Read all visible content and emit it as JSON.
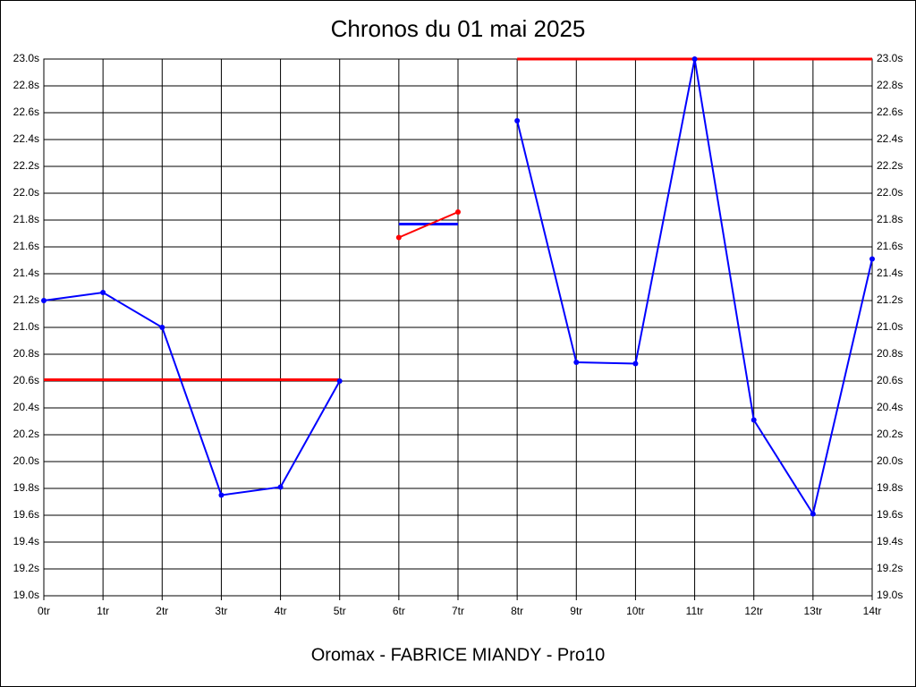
{
  "chart_data": {
    "type": "line",
    "title": "Chronos du 01 mai 2025",
    "subtitle": "Oromax - FABRICE MIANDY - Pro10",
    "x": [
      0,
      1,
      2,
      3,
      4,
      5,
      6,
      7,
      8,
      9,
      10,
      11,
      12,
      13,
      14
    ],
    "xlim": [
      0,
      14
    ],
    "xticks": [
      {
        "value": 0,
        "label": "0tr"
      },
      {
        "value": 1,
        "label": "1tr"
      },
      {
        "value": 2,
        "label": "2tr"
      },
      {
        "value": 3,
        "label": "3tr"
      },
      {
        "value": 4,
        "label": "4tr"
      },
      {
        "value": 5,
        "label": "5tr"
      },
      {
        "value": 6,
        "label": "6tr"
      },
      {
        "value": 7,
        "label": "7tr"
      },
      {
        "value": 8,
        "label": "8tr"
      },
      {
        "value": 9,
        "label": "9tr"
      },
      {
        "value": 10,
        "label": "10tr"
      },
      {
        "value": 11,
        "label": "11tr"
      },
      {
        "value": 12,
        "label": "12tr"
      },
      {
        "value": 13,
        "label": "13tr"
      },
      {
        "value": 14,
        "label": "14tr"
      }
    ],
    "ylim": [
      19.0,
      23.0
    ],
    "yticks": [
      {
        "value": 19.0,
        "label": "19.0s"
      },
      {
        "value": 19.2,
        "label": "19.2s"
      },
      {
        "value": 19.4,
        "label": "19.4s"
      },
      {
        "value": 19.6,
        "label": "19.6s"
      },
      {
        "value": 19.8,
        "label": "19.8s"
      },
      {
        "value": 20.0,
        "label": "20.0s"
      },
      {
        "value": 20.2,
        "label": "20.2s"
      },
      {
        "value": 20.4,
        "label": "20.4s"
      },
      {
        "value": 20.6,
        "label": "20.6s"
      },
      {
        "value": 20.8,
        "label": "20.8s"
      },
      {
        "value": 21.0,
        "label": "21.0s"
      },
      {
        "value": 21.2,
        "label": "21.2s"
      },
      {
        "value": 21.4,
        "label": "21.4s"
      },
      {
        "value": 21.6,
        "label": "21.6s"
      },
      {
        "value": 21.8,
        "label": "21.8s"
      },
      {
        "value": 22.0,
        "label": "22.0s"
      },
      {
        "value": 22.2,
        "label": "22.2s"
      },
      {
        "value": 22.4,
        "label": "22.4s"
      },
      {
        "value": 22.6,
        "label": "22.6s"
      },
      {
        "value": 22.8,
        "label": "22.8s"
      },
      {
        "value": 23.0,
        "label": "23.0s"
      }
    ],
    "grid": true,
    "series": [
      {
        "color": "#ff0000",
        "markers": false,
        "values": [
          20.61,
          20.61,
          20.61,
          20.61,
          20.61,
          20.61,
          null,
          null,
          null,
          null,
          null,
          null,
          null,
          null,
          null
        ]
      },
      {
        "color": "#0000ff",
        "markers": false,
        "values": [
          null,
          null,
          null,
          null,
          null,
          null,
          21.77,
          21.77,
          null,
          null,
          null,
          null,
          null,
          null,
          null
        ]
      },
      {
        "color": "#ff0000",
        "markers": false,
        "values": [
          null,
          null,
          null,
          null,
          null,
          null,
          null,
          null,
          23.0,
          23.0,
          23.0,
          23.0,
          23.0,
          23.0,
          23.0
        ]
      },
      {
        "color": "#ff0000",
        "markers": true,
        "values": [
          null,
          null,
          null,
          null,
          null,
          null,
          21.67,
          21.86,
          null,
          null,
          null,
          null,
          null,
          null,
          null
        ]
      },
      {
        "color": "#0000ff",
        "markers": true,
        "values": [
          21.2,
          21.26,
          21.0,
          19.75,
          19.81,
          20.6,
          null,
          null,
          22.54,
          20.74,
          20.73,
          23.0,
          20.31,
          19.61,
          21.51
        ]
      }
    ]
  }
}
